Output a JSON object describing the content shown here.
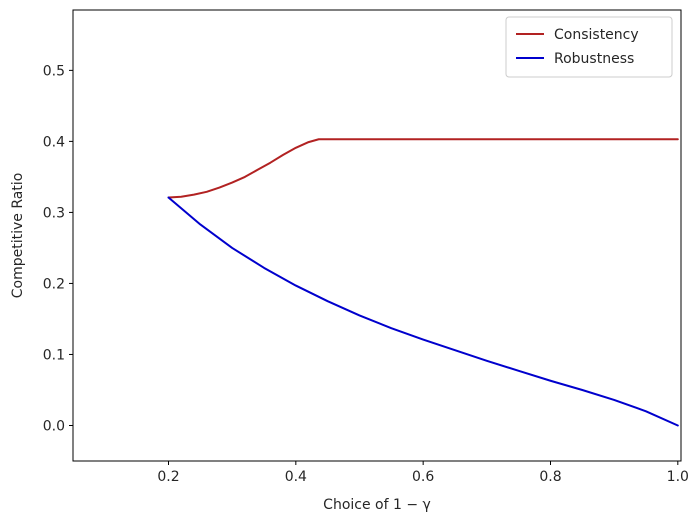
{
  "chart_data": {
    "type": "line",
    "title": "",
    "xlabel": "Choice of 1 − γ",
    "ylabel": "Competitive Ratio",
    "xlim": [
      0.05,
      1.005
    ],
    "ylim": [
      -0.05,
      0.585
    ],
    "xticks": [
      0.2,
      0.4,
      0.6,
      0.8,
      1.0
    ],
    "xtick_labels": [
      "0.2",
      "0.4",
      "0.6",
      "0.8",
      "1.0"
    ],
    "yticks": [
      0.0,
      0.1,
      0.2,
      0.3,
      0.4,
      0.5
    ],
    "ytick_labels": [
      "0.0",
      "0.1",
      "0.2",
      "0.3",
      "0.4",
      "0.5"
    ],
    "grid": false,
    "legend_position": "top-right",
    "series": [
      {
        "name": "Consistency",
        "color": "#b22222",
        "x": [
          0.2,
          0.22,
          0.24,
          0.26,
          0.28,
          0.3,
          0.32,
          0.34,
          0.36,
          0.38,
          0.4,
          0.42,
          0.436,
          0.5,
          0.6,
          0.7,
          0.8,
          0.9,
          1.0
        ],
        "y": [
          0.321,
          0.322,
          0.325,
          0.329,
          0.335,
          0.342,
          0.35,
          0.36,
          0.37,
          0.381,
          0.391,
          0.399,
          0.403,
          0.403,
          0.403,
          0.403,
          0.403,
          0.403,
          0.403
        ]
      },
      {
        "name": "Robustness",
        "color": "#0000cd",
        "x": [
          0.2,
          0.25,
          0.3,
          0.35,
          0.4,
          0.45,
          0.5,
          0.55,
          0.6,
          0.65,
          0.7,
          0.75,
          0.8,
          0.85,
          0.9,
          0.95,
          1.0
        ],
        "y": [
          0.321,
          0.283,
          0.25,
          0.222,
          0.197,
          0.175,
          0.155,
          0.137,
          0.121,
          0.106,
          0.091,
          0.077,
          0.063,
          0.05,
          0.036,
          0.02,
          0.0
        ]
      }
    ]
  }
}
